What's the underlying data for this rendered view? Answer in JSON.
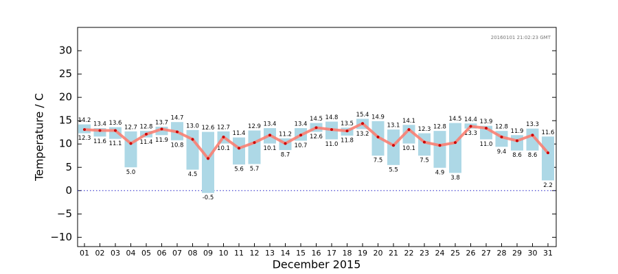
{
  "chart_data": {
    "type": "range-bar-line",
    "timestamp": "20160101 21:02:23 GMT",
    "ylabel": "Temperature / C",
    "xlabel": "December 2015",
    "categories": [
      "01",
      "02",
      "03",
      "04",
      "05",
      "06",
      "07",
      "08",
      "09",
      "10",
      "11",
      "12",
      "13",
      "14",
      "15",
      "16",
      "17",
      "18",
      "19",
      "20",
      "21",
      "22",
      "23",
      "24",
      "25",
      "26",
      "27",
      "28",
      "29",
      "30",
      "31"
    ],
    "bar_color": "#add8e6",
    "high": {
      "values": [
        14.2,
        13.4,
        13.6,
        12.7,
        12.8,
        13.7,
        14.7,
        13.0,
        12.6,
        12.7,
        11.4,
        12.9,
        13.4,
        11.2,
        13.4,
        14.5,
        14.8,
        13.5,
        15.4,
        14.9,
        13.1,
        14.1,
        12.3,
        12.8,
        14.5,
        14.4,
        13.9,
        12.8,
        11.9,
        13.3,
        11.6
      ],
      "value_labels": [
        "14.2",
        "13.4",
        "13.6",
        "12.7",
        "12.8",
        "13.7",
        "14.7",
        "13.0",
        "12.6",
        "12.7",
        "11.4",
        "12.9",
        "13.4",
        "11.2",
        "13.4",
        "14.5",
        "14.8",
        "13.5",
        "15.4",
        "14.9",
        "13.1",
        "14.1",
        "12.3",
        "12.8",
        "14.5",
        "14.4",
        "13.9",
        "12.8",
        "11.9",
        "13.3",
        "11.6"
      ]
    },
    "low": {
      "values": [
        12.3,
        11.6,
        11.1,
        5.0,
        11.4,
        11.9,
        10.8,
        4.5,
        -0.5,
        10.1,
        5.6,
        5.7,
        10.1,
        8.7,
        10.7,
        12.6,
        11.0,
        11.8,
        13.2,
        7.5,
        5.5,
        10.1,
        7.5,
        4.9,
        3.8,
        13.3,
        11.0,
        9.4,
        8.6,
        8.6,
        2.2
      ],
      "value_labels": [
        "12.3",
        "11.6",
        "11.1",
        "5.0",
        "11.4",
        "11.9",
        "10.8",
        "4.5",
        "-0.5",
        "10.1",
        "5.6",
        "5.7",
        "10.1",
        "8.7",
        "10.7",
        "12.6",
        "11.0",
        "11.8",
        "13.2",
        "7.5",
        "5.5",
        "10.1",
        "7.5",
        "4.9",
        "3.8",
        "13.3",
        "11.0",
        "9.4",
        "8.6",
        "8.6",
        "2.2"
      ]
    },
    "mean": {
      "color": "#fa8072",
      "marker_color": "#cc0000",
      "values": [
        13.1,
        12.9,
        12.9,
        10.1,
        12.1,
        13.2,
        12.6,
        11.0,
        6.9,
        11.5,
        9.1,
        10.3,
        11.9,
        10.1,
        11.9,
        13.5,
        13.1,
        12.8,
        14.4,
        11.5,
        9.7,
        13.1,
        10.4,
        9.7,
        10.3,
        13.8,
        13.4,
        11.5,
        10.7,
        11.9,
        8.1
      ]
    },
    "reference_line": {
      "value": 0,
      "color": "#3333cc"
    },
    "ylim": [
      -12,
      35
    ],
    "yticks": [
      {
        "value": -10,
        "label": "−10"
      },
      {
        "value": -5,
        "label": "−5"
      },
      0,
      5,
      10,
      15,
      20,
      25,
      30
    ]
  }
}
